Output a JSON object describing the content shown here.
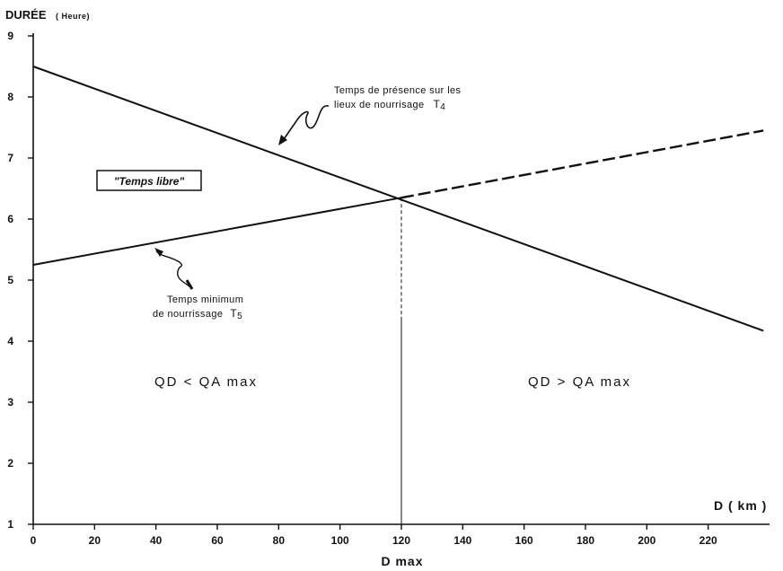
{
  "chart_data": {
    "type": "line",
    "title": "",
    "ylabel": "DURÉE",
    "ylabel_unit": "( Heure)",
    "xlabel": "D ( km )",
    "xmarker_label": "D max",
    "xlim": [
      0,
      240
    ],
    "ylim": [
      1,
      9
    ],
    "xticks": [
      0,
      20,
      40,
      60,
      80,
      100,
      120,
      140,
      160,
      180,
      200,
      220
    ],
    "yticks": [
      1,
      2,
      3,
      4,
      5,
      6,
      7,
      8,
      9
    ],
    "grid": false,
    "series": [
      {
        "name": "Temps de présence sur les lieux de nourrisage T4",
        "style": "solid",
        "x": [
          0,
          238
        ],
        "y": [
          8.5,
          4.17
        ]
      },
      {
        "name": "Temps minimum de nourrissage T5",
        "style": "solid",
        "x": [
          0,
          120
        ],
        "y": [
          5.25,
          6.35
        ]
      },
      {
        "name": "Temps minimum de nourrissage T5 (extrapolation)",
        "style": "dashed",
        "x": [
          120,
          238
        ],
        "y": [
          6.35,
          7.45
        ]
      }
    ],
    "vertical_marker": {
      "x": 120
    },
    "annotations": {
      "t4_line1": "Temps de présence sur les",
      "t4_line2": "lieux de nourrisage",
      "t4_name": "T",
      "t4_sub": "4",
      "t5_line1": "Temps minimum",
      "t5_line2": "de nourrissage",
      "t5_name": "T",
      "t5_sub": "5",
      "free_time": "\"Temps libre\"",
      "region_left": "QD < QA max",
      "region_right": "QD > QA max"
    }
  },
  "colors": {
    "ink": "#111111",
    "background": "#ffffff"
  }
}
